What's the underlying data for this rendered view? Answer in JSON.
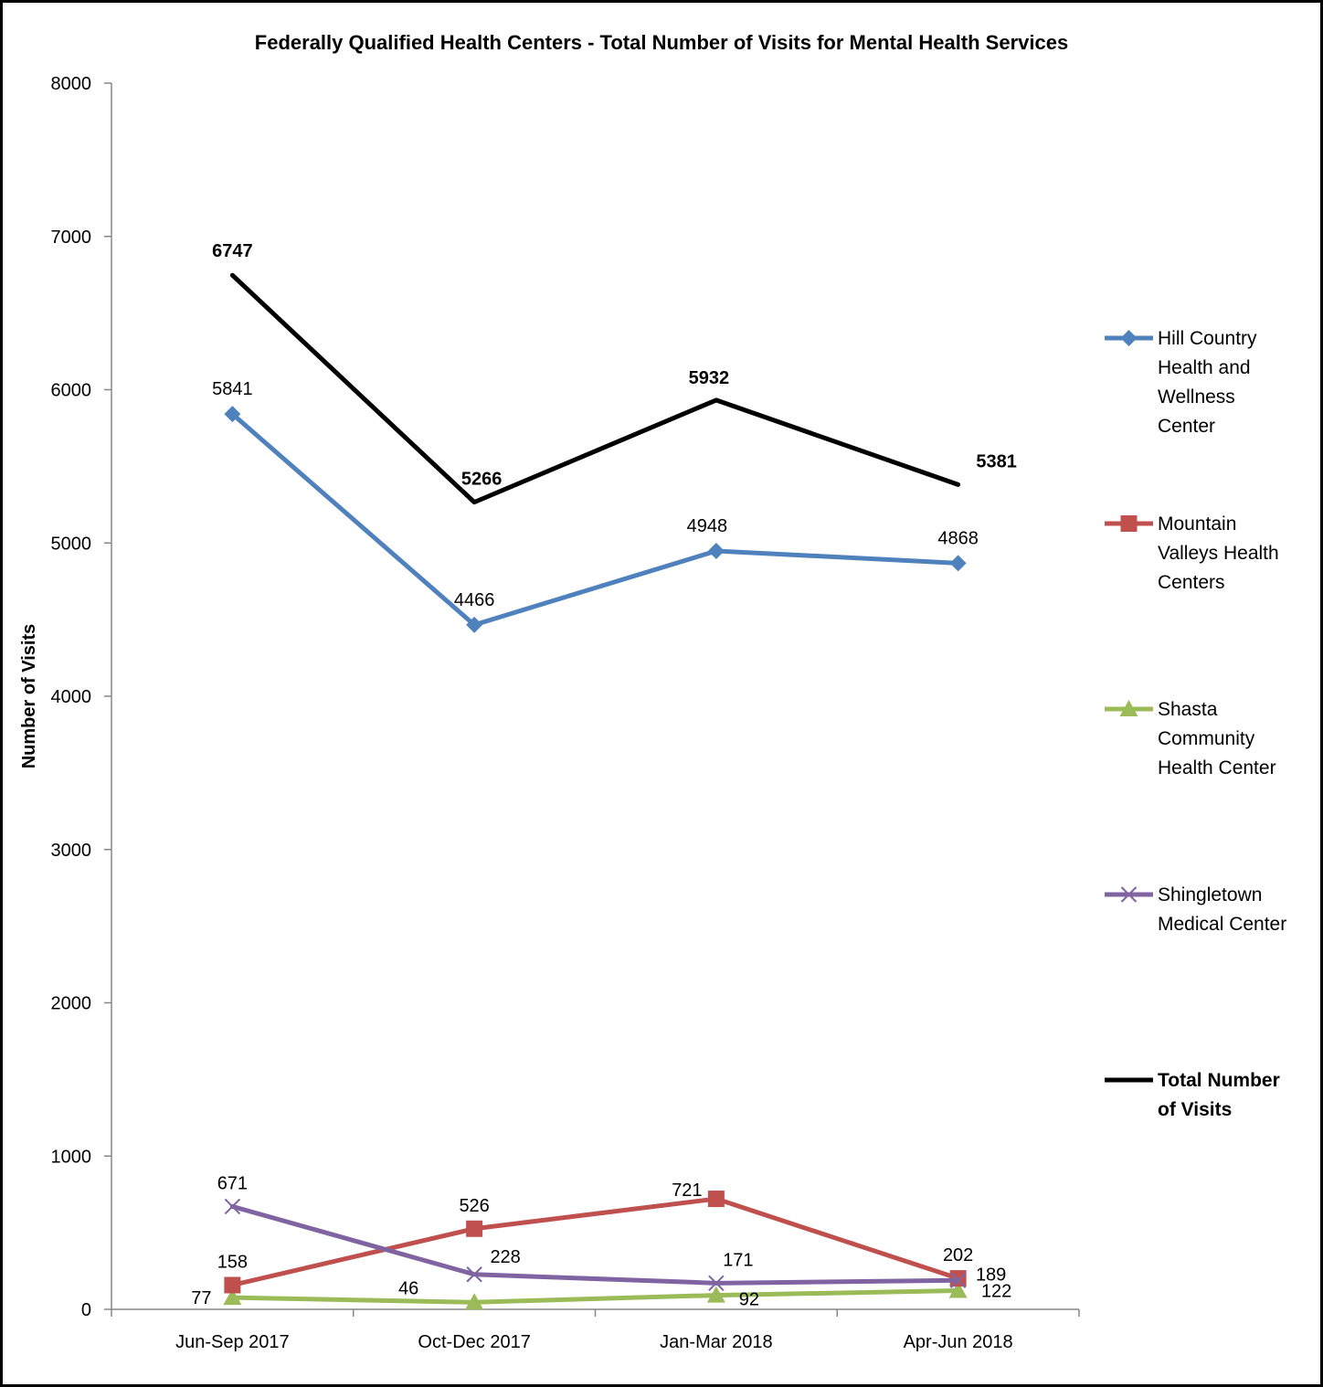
{
  "chart_data": {
    "type": "line",
    "title": "Federally Qualified Health Centers - Total Number of Visits for Mental Health Services",
    "xlabel": "",
    "ylabel": "Number of Visits",
    "ylim": [
      0,
      8000
    ],
    "yticks": [
      "0",
      "1000",
      "2000",
      "3000",
      "4000",
      "5000",
      "6000",
      "7000",
      "8000"
    ],
    "categories": [
      "Jun-Sep 2017",
      "Oct-Dec 2017",
      "Jan-Mar 2018",
      "Apr-Jun 2018"
    ],
    "grid": false,
    "legend_position": "right",
    "series": [
      {
        "name": "Hill Country Health and Wellness Center",
        "legend_lines": [
          "Hill Country",
          "Health and",
          "Wellness",
          "Center"
        ],
        "color": "#4F81BD",
        "marker": "diamond",
        "values": [
          5841,
          4466,
          4948,
          4868
        ],
        "labels": [
          "5841",
          "4466",
          "4948",
          "4868"
        ]
      },
      {
        "name": "Mountain Valleys Health Centers",
        "legend_lines": [
          "Mountain",
          "Valleys Health",
          "Centers"
        ],
        "color": "#C0504D",
        "marker": "square",
        "values": [
          158,
          526,
          721,
          202
        ],
        "labels": [
          "158",
          "526",
          "721",
          "202"
        ]
      },
      {
        "name": "Shasta Community Health Center",
        "legend_lines": [
          "Shasta",
          "Community",
          "Health Center"
        ],
        "color": "#9BBB59",
        "marker": "triangle",
        "values": [
          77,
          46,
          92,
          122
        ],
        "labels": [
          "77",
          "46",
          "92",
          "122"
        ]
      },
      {
        "name": "Shingletown Medical Center",
        "legend_lines": [
          "Shingletown",
          "Medical Center"
        ],
        "color": "#8064A2",
        "marker": "x",
        "values": [
          671,
          228,
          171,
          189
        ],
        "labels": [
          "671",
          "228",
          "171",
          "189"
        ]
      },
      {
        "name": "Total Number of Visits",
        "legend_lines": [
          "Total Number",
          "of Visits"
        ],
        "color": "#000000",
        "marker": "none",
        "bold": true,
        "values": [
          6747,
          5266,
          5932,
          5381
        ],
        "labels": [
          "6747",
          "5266",
          "5932",
          "5381"
        ]
      }
    ]
  }
}
